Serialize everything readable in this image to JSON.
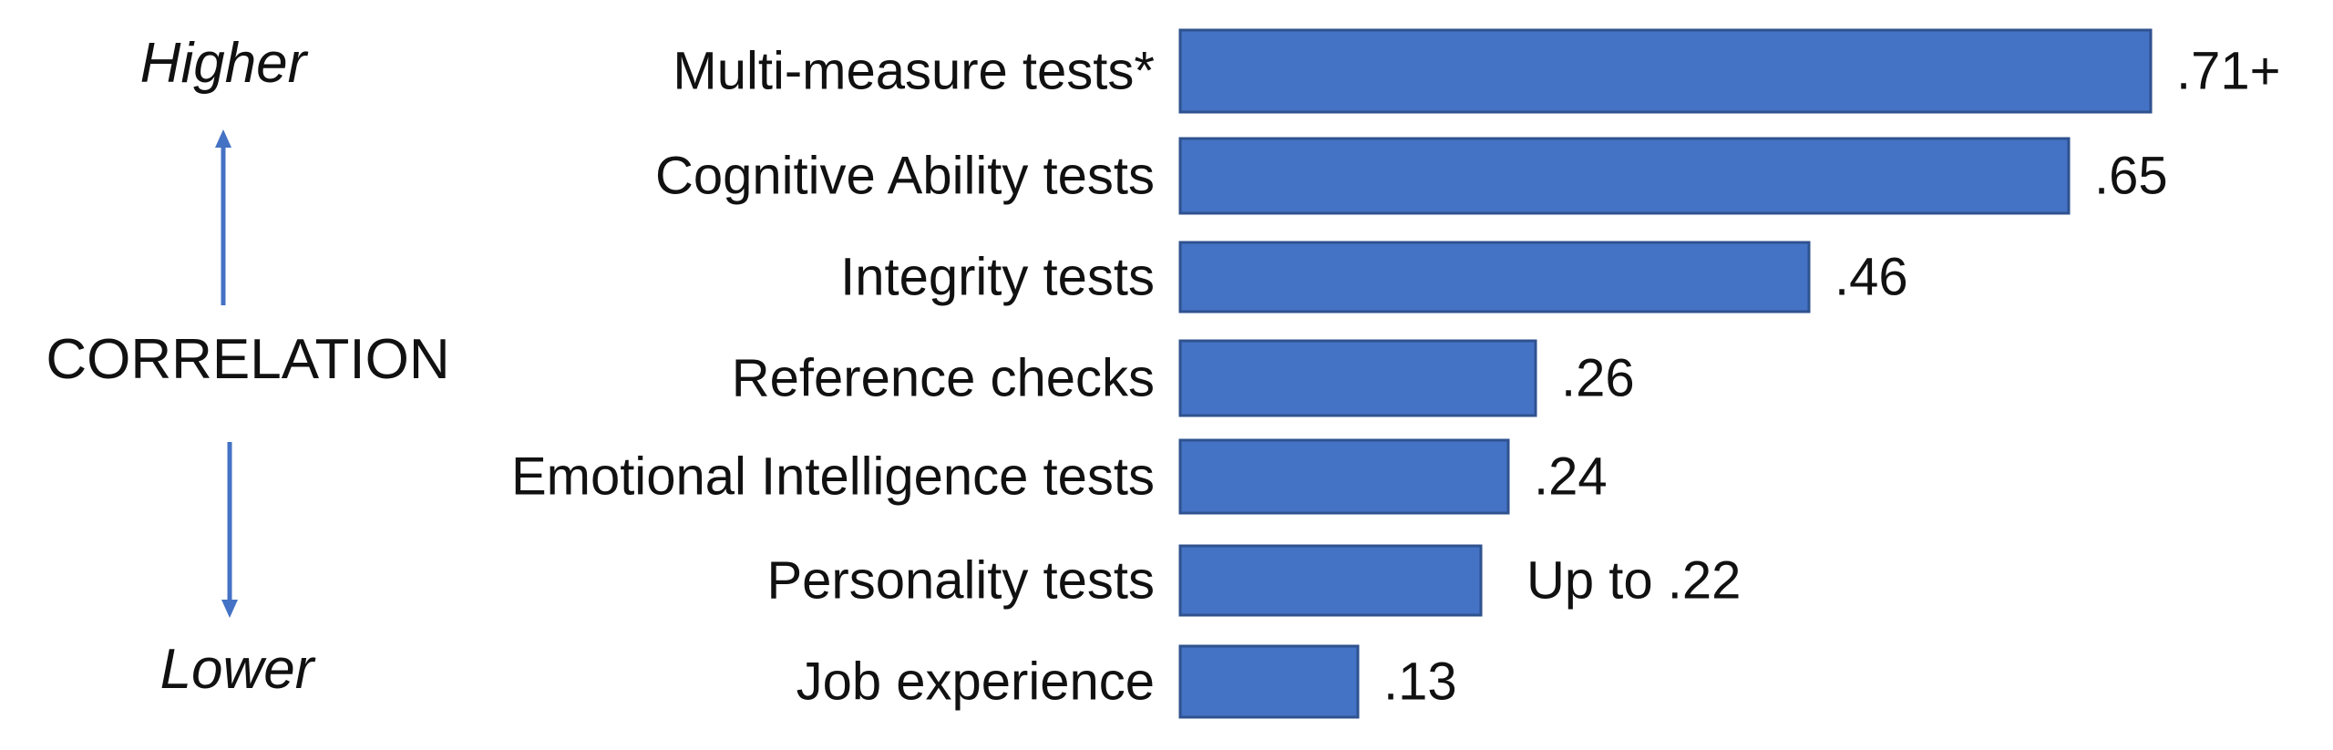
{
  "chart_data": {
    "type": "bar",
    "orientation": "horizontal",
    "categories": [
      "Multi-measure tests*",
      "Cognitive Ability tests",
      "Integrity tests",
      "Reference checks",
      "Emotional Intelligence tests",
      "Personality tests",
      "Job experience"
    ],
    "values": [
      0.71,
      0.65,
      0.46,
      0.26,
      0.24,
      0.22,
      0.13
    ],
    "value_labels": [
      ".71+",
      ".65",
      ".46",
      ".26",
      ".24",
      "Up to .22",
      ".13"
    ],
    "xlim": [
      0,
      0.71
    ],
    "grid": false,
    "legend": "none"
  },
  "axis": {
    "title": "CORRELATION",
    "top_label": "Higher",
    "bottom_label": "Lower"
  },
  "colors": {
    "bar_fill": "#4472C4",
    "bar_stroke": "#2F528F",
    "arrow": "#4472C4",
    "text": "#111111"
  }
}
